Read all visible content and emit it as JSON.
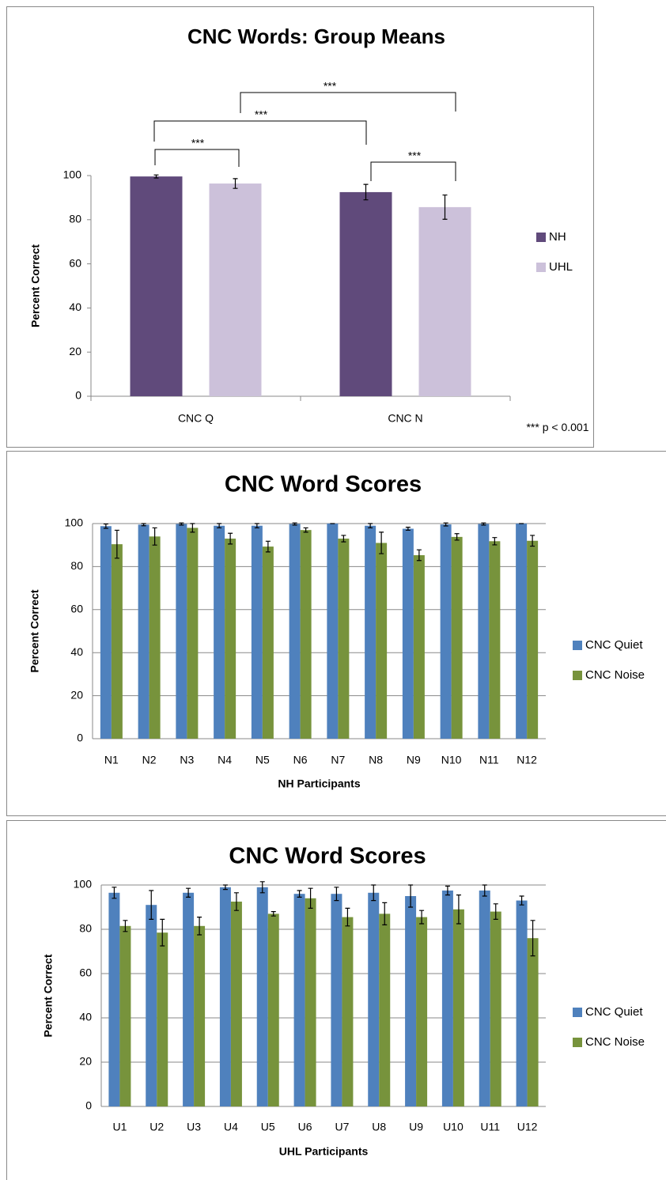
{
  "chart_data": [
    {
      "type": "bar",
      "title": "CNC Words: Group Means",
      "ylabel": "Percent Correct",
      "categories": [
        "CNC Q",
        "CNC N"
      ],
      "series": [
        {
          "name": "NH",
          "color": "#604a7b",
          "values": [
            99.6,
            92.5
          ],
          "errors": [
            0.7,
            3.5
          ]
        },
        {
          "name": "UHL",
          "color": "#ccc1da",
          "values": [
            96.4,
            85.7
          ],
          "errors": [
            2.2,
            5.5
          ]
        }
      ],
      "ylim": [
        0,
        100
      ],
      "yticks": [
        0,
        20,
        40,
        60,
        80,
        100
      ],
      "grid": false,
      "annotations": [
        "***",
        "***",
        "***",
        "***"
      ],
      "note": "*** p < 0.001"
    },
    {
      "type": "bar",
      "title": "CNC Word Scores",
      "ylabel": "Percent Correct",
      "xlabel": "NH Participants",
      "categories": [
        "N1",
        "N2",
        "N3",
        "N4",
        "N5",
        "N6",
        "N7",
        "N8",
        "N9",
        "N10",
        "N11",
        "N12"
      ],
      "series": [
        {
          "name": "CNC Quiet",
          "color": "#4f81bd",
          "values": [
            98.8,
            99.5,
            99.8,
            99,
            99,
            99.8,
            100,
            99,
            97.6,
            99.6,
            99.8,
            100
          ],
          "errors": [
            1,
            0.5,
            0.5,
            1,
            1,
            0.5,
            0,
            1,
            0.7,
            0.7,
            0.5,
            0
          ]
        },
        {
          "name": "CNC Noise",
          "color": "#77933c",
          "values": [
            90.4,
            94,
            98,
            93,
            89.3,
            97,
            93,
            91,
            85.3,
            93.8,
            91.8,
            92
          ],
          "errors": [
            6.5,
            4,
            2,
            2.5,
            2.5,
            1,
            1.5,
            5,
            2.5,
            1.5,
            1.7,
            2.5
          ]
        }
      ],
      "ylim": [
        0,
        100
      ],
      "yticks": [
        0,
        20,
        40,
        60,
        80,
        100
      ],
      "grid": true
    },
    {
      "type": "bar",
      "title": "CNC Word Scores",
      "ylabel": "Percent Correct",
      "xlabel": "UHL Participants",
      "categories": [
        "U1",
        "U2",
        "U3",
        "U4",
        "U5",
        "U6",
        "U7",
        "U8",
        "U9",
        "U10",
        "U11",
        "U12"
      ],
      "series": [
        {
          "name": "CNC Quiet",
          "color": "#4f81bd",
          "values": [
            96.5,
            91,
            96.5,
            99,
            99,
            96,
            96,
            96.5,
            95,
            97.5,
            97.5,
            93
          ],
          "errors": [
            2.5,
            6.5,
            2,
            1,
            2.5,
            1.5,
            3,
            3.5,
            5,
            2,
            2.5,
            2
          ]
        },
        {
          "name": "CNC Noise",
          "color": "#77933c",
          "values": [
            81.5,
            78.5,
            81.5,
            92.5,
            87,
            94,
            85.5,
            87,
            85.5,
            89,
            88,
            76
          ],
          "errors": [
            2.5,
            6,
            4,
            4,
            1,
            4.5,
            4,
            5,
            3,
            6.5,
            3.5,
            8
          ]
        }
      ],
      "ylim": [
        0,
        100
      ],
      "yticks": [
        0,
        20,
        40,
        60,
        80,
        100
      ],
      "grid": true
    }
  ]
}
